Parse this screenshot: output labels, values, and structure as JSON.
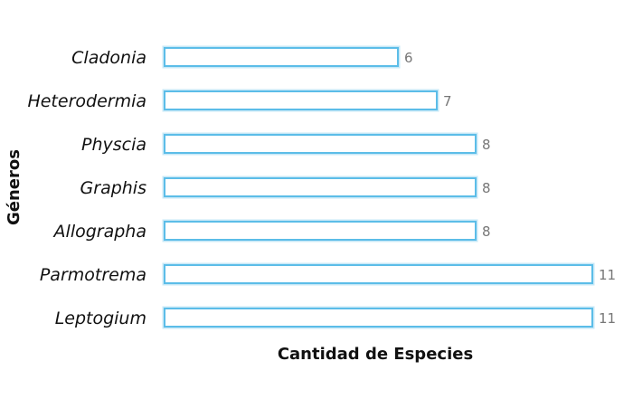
{
  "chart_data": {
    "type": "bar",
    "orientation": "horizontal",
    "categories": [
      "Cladonia",
      "Heterodermia",
      "Physcia",
      "Graphis",
      "Allographa",
      "Parmotrema",
      "Leptogium"
    ],
    "values": [
      6,
      7,
      8,
      8,
      8,
      11,
      11
    ],
    "title": "",
    "xlabel": "Cantidad de Especies",
    "ylabel": "Géneros",
    "xlim": [
      0,
      11
    ],
    "grid": false,
    "legend": "none",
    "colors": {
      "bar_stroke": "#5cbde8",
      "bar_glow": "#c7e8f7",
      "bar_fill": "#ffffff",
      "value_text": "#777777"
    }
  }
}
